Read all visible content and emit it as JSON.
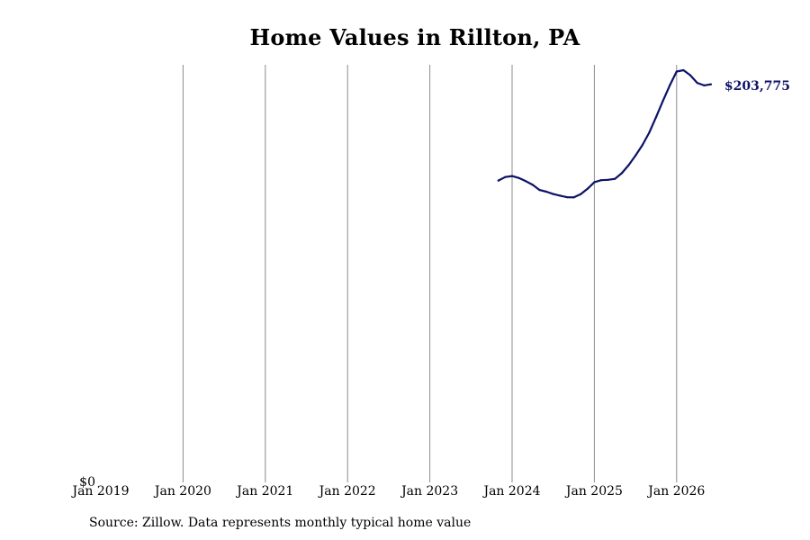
{
  "chart_data": {
    "type": "line",
    "title": "Home Values in Rillton, PA",
    "x_tick_labels": [
      "Jan 2019",
      "Jan 2020",
      "Jan 2021",
      "Jan 2022",
      "Jan 2023",
      "Jan 2024",
      "Jan 2025",
      "Jan 2026"
    ],
    "y_tick_labels": [
      "$0"
    ],
    "ylim": [
      0,
      203775
    ],
    "grid": "vertical",
    "series": [
      {
        "color": "#0d1266",
        "end_label": "$203,775",
        "points": [
          {
            "date": "2023-11",
            "value": 154500
          },
          {
            "date": "2023-12",
            "value": 156300
          },
          {
            "date": "2024-01",
            "value": 156800
          },
          {
            "date": "2024-02",
            "value": 155800
          },
          {
            "date": "2024-03",
            "value": 154200
          },
          {
            "date": "2024-04",
            "value": 152300
          },
          {
            "date": "2024-05",
            "value": 149700
          },
          {
            "date": "2024-06",
            "value": 148800
          },
          {
            "date": "2024-07",
            "value": 147600
          },
          {
            "date": "2024-08",
            "value": 146800
          },
          {
            "date": "2024-09",
            "value": 146000
          },
          {
            "date": "2024-10",
            "value": 145900
          },
          {
            "date": "2024-11",
            "value": 147500
          },
          {
            "date": "2024-12",
            "value": 150300
          },
          {
            "date": "2025-01",
            "value": 153700
          },
          {
            "date": "2025-02",
            "value": 154700
          },
          {
            "date": "2025-03",
            "value": 154900
          },
          {
            "date": "2025-04",
            "value": 155400
          },
          {
            "date": "2025-05",
            "value": 158300
          },
          {
            "date": "2025-06",
            "value": 162400
          },
          {
            "date": "2025-07",
            "value": 167300
          },
          {
            "date": "2025-08",
            "value": 172600
          },
          {
            "date": "2025-09",
            "value": 179000
          },
          {
            "date": "2025-10",
            "value": 187000
          },
          {
            "date": "2025-11",
            "value": 195300
          },
          {
            "date": "2025-12",
            "value": 203200
          },
          {
            "date": "2026-01",
            "value": 210300
          },
          {
            "date": "2026-02",
            "value": 211000
          },
          {
            "date": "2026-03",
            "value": 208400
          },
          {
            "date": "2026-04",
            "value": 204500
          },
          {
            "date": "2026-05",
            "value": 203200
          },
          {
            "date": "2026-06",
            "value": 203775
          }
        ]
      }
    ]
  },
  "source_note": "Source: Zillow. Data represents monthly typical home value"
}
